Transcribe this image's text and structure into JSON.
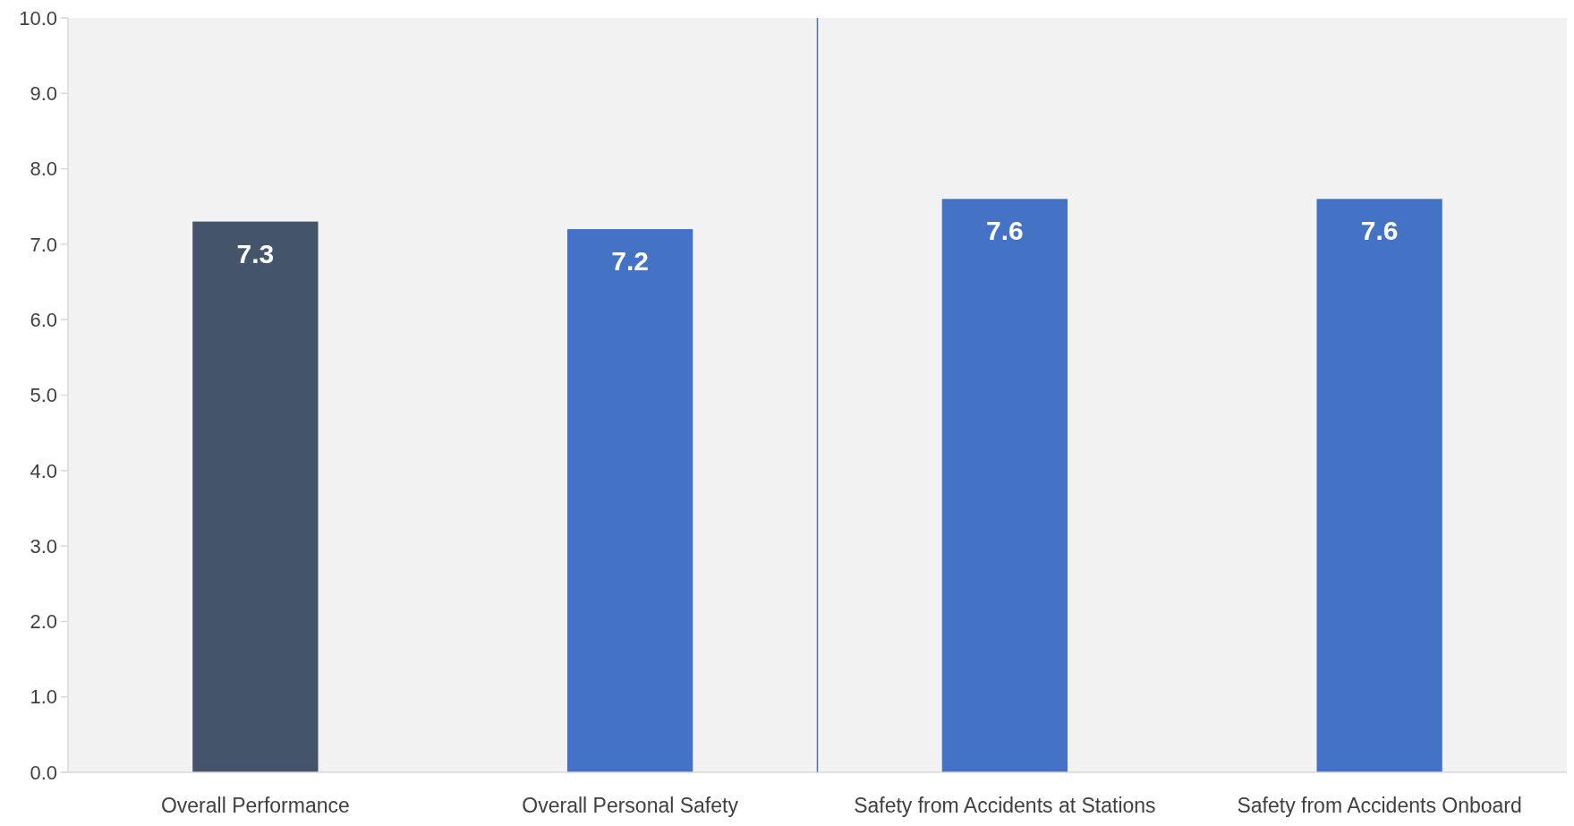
{
  "chart_data": [
    {
      "type": "bar",
      "categories": [
        "Overall Performance",
        "Overall Personal Safety"
      ],
      "values": [
        7.3,
        7.2
      ],
      "colors": [
        "#44546a",
        "#4472c4"
      ],
      "ylim": [
        0,
        10
      ],
      "yticks": [
        {
          "value": 0,
          "label": "0.0"
        },
        {
          "value": 1,
          "label": "1.0"
        },
        {
          "value": 2,
          "label": "2.0"
        },
        {
          "value": 3,
          "label": "3.0"
        },
        {
          "value": 4,
          "label": "4.0"
        },
        {
          "value": 5,
          "label": "5.0"
        },
        {
          "value": 6,
          "label": "6.0"
        },
        {
          "value": 7,
          "label": "7.0"
        },
        {
          "value": 8,
          "label": "8.0"
        },
        {
          "value": 9,
          "label": "9.0"
        },
        {
          "value": 10,
          "label": "10.0"
        }
      ],
      "data_labels": true
    },
    {
      "type": "bar",
      "categories": [
        "Safety from Accidents at Stations",
        "Safety from Accidents Onboard"
      ],
      "values": [
        7.6,
        7.6
      ],
      "colors": [
        "#4472c4",
        "#4472c4"
      ],
      "ylim": [
        0,
        10
      ],
      "tick_labels": "x",
      "data_labels": true
    }
  ]
}
